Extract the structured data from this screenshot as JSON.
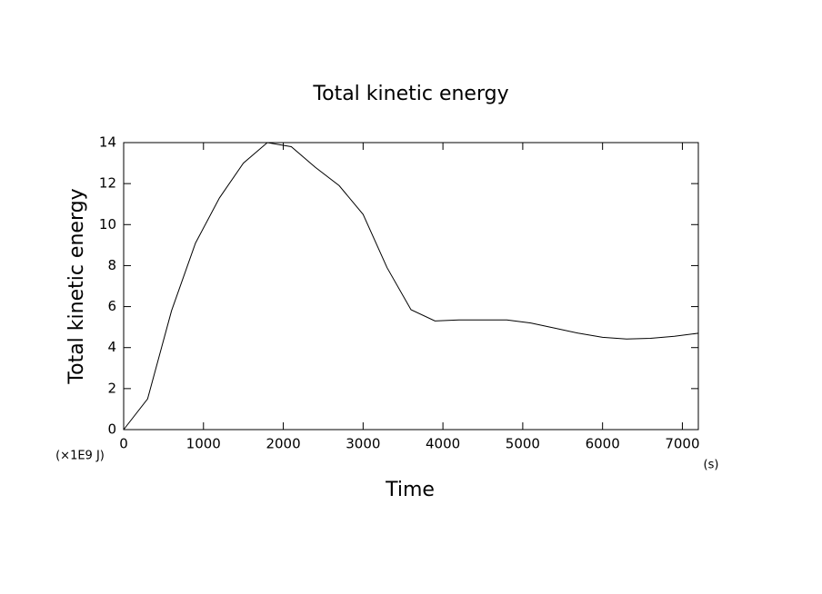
{
  "chart_data": {
    "type": "line",
    "title": "Total kinetic energy",
    "x_label": "Time",
    "y_label": "Total kinetic energy",
    "y_unit": "(×1E9 J)",
    "x_unit": "(s)",
    "x": [
      0,
      300,
      600,
      900,
      1200,
      1500,
      1800,
      2100,
      2400,
      2700,
      3000,
      3300,
      3600,
      3900,
      4200,
      4500,
      4800,
      5100,
      5400,
      5700,
      6000,
      6300,
      6600,
      6900,
      7200
    ],
    "values": [
      0,
      1.5,
      5.8,
      9.1,
      11.3,
      13.0,
      14.0,
      13.8,
      12.8,
      11.9,
      10.5,
      7.9,
      5.85,
      5.3,
      5.35,
      5.35,
      5.35,
      5.2,
      4.95,
      4.7,
      4.5,
      4.42,
      4.45,
      4.55,
      4.7
    ],
    "color": "#000000",
    "xlim": [
      0,
      7200
    ],
    "xticks": [
      0,
      1000,
      2000,
      3000,
      4000,
      5000,
      6000,
      7000
    ],
    "ylim": [
      0,
      14
    ],
    "yticks": [
      0,
      2,
      4,
      6,
      8,
      10,
      12,
      14
    ],
    "grid": false
  }
}
